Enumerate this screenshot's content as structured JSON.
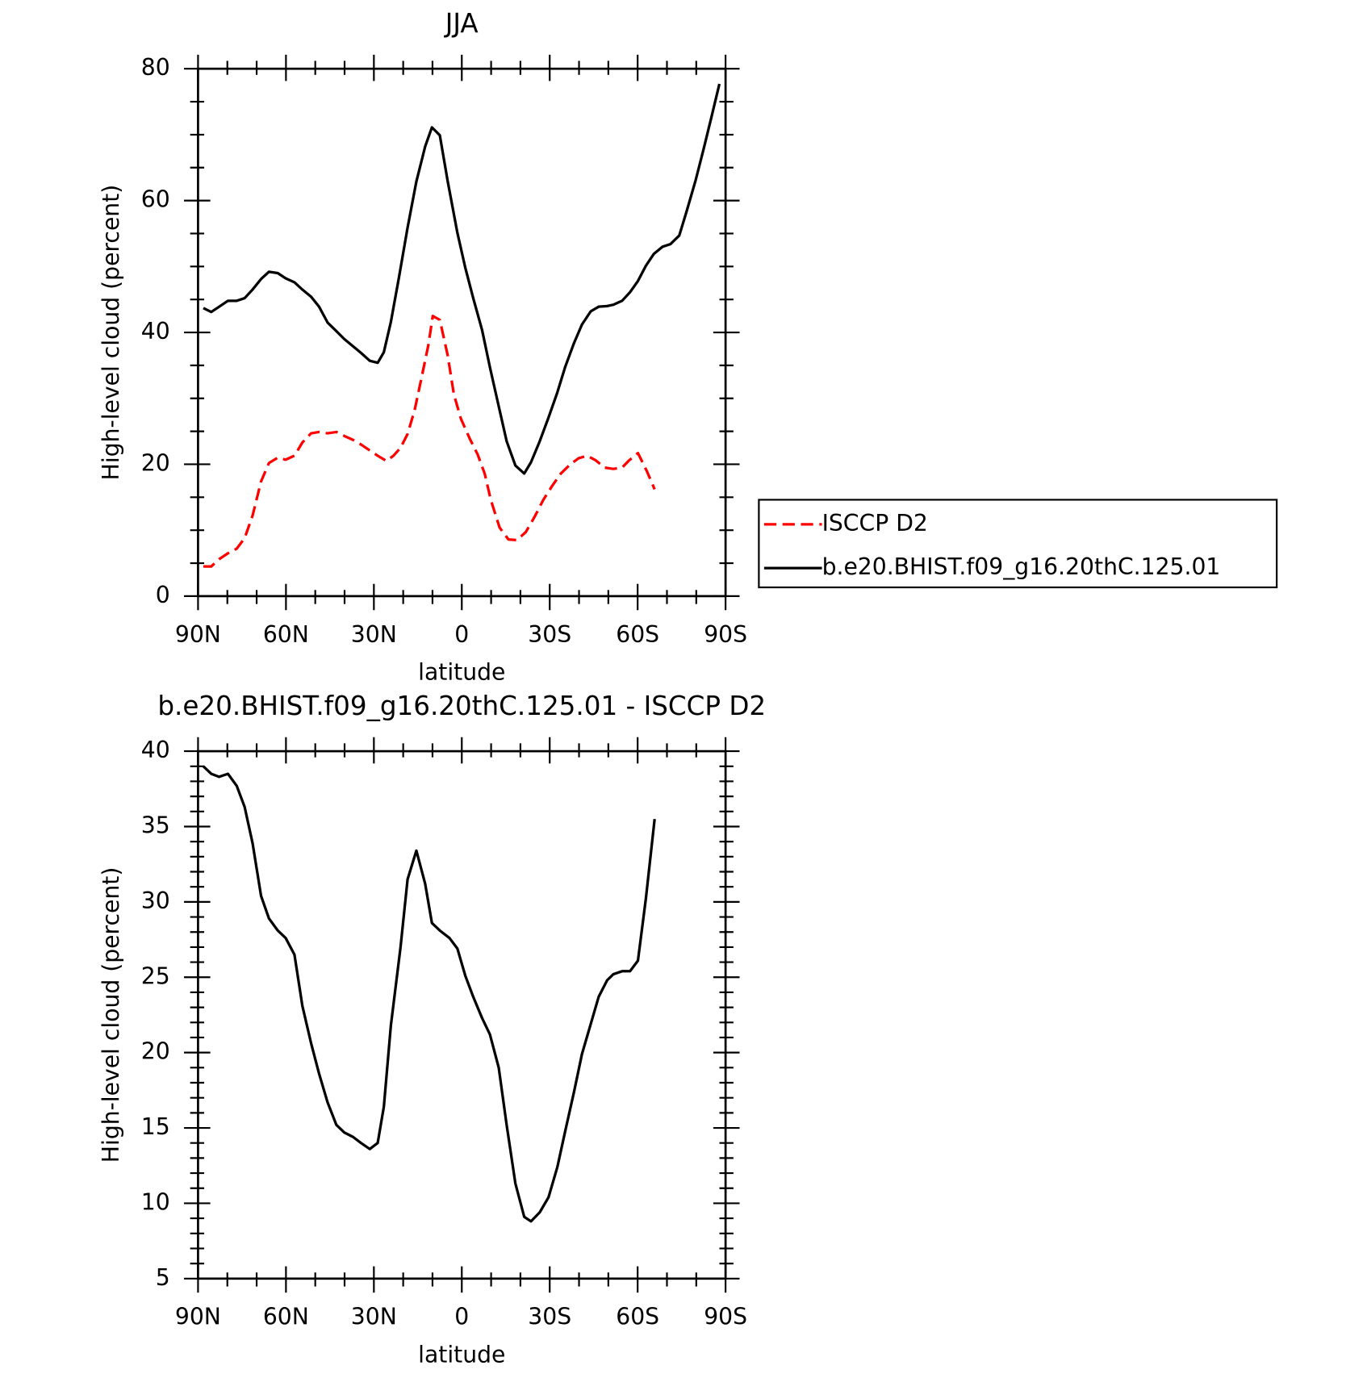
{
  "chart_data": [
    {
      "type": "line",
      "title": "JJA",
      "xlabel": "latitude",
      "ylabel": "High-level cloud (percent)",
      "xlim": [
        90,
        -90
      ],
      "ylim": [
        0,
        80
      ],
      "xticks": [
        {
          "value": 90,
          "label": "90N"
        },
        {
          "value": 60,
          "label": "60N"
        },
        {
          "value": 30,
          "label": "30N"
        },
        0,
        {
          "value": -30,
          "label": "30S"
        },
        {
          "value": -60,
          "label": "60S"
        },
        {
          "value": -90,
          "label": "90S"
        }
      ],
      "yticks": [
        0,
        20,
        40,
        60,
        80
      ],
      "xminorticks": [
        80,
        70,
        50,
        40,
        20,
        10,
        -10,
        -20,
        -40,
        -50,
        -70,
        -80
      ],
      "yminorticks": [
        5,
        10,
        15,
        25,
        30,
        35,
        45,
        50,
        55,
        65,
        70,
        75
      ],
      "legend": "right",
      "series": [
        {
          "name": "ISCCP D2",
          "color": "#ff0000",
          "line_style": "dashed",
          "x": [
            88.2,
            85.5,
            82.8,
            79.8,
            76.8,
            74.1,
            71.4,
            68.5,
            65.8,
            62.8,
            60.1,
            57.1,
            54.4,
            51.4,
            48.7,
            45.8,
            42.8,
            40.1,
            37.1,
            34.4,
            31.4,
            28.7,
            25.7,
            23.3,
            20.9,
            18.5,
            16.1,
            13.8,
            11.4,
            9.9,
            7.5,
            4.8,
            2.7,
            0.3,
            -2.7,
            -5.4,
            -7.8,
            -9.9,
            -12.9,
            -15.9,
            -18.8,
            -21.8,
            -24.8,
            -27.8,
            -30.8,
            -33.8,
            -36.8,
            -39.8,
            -42.8,
            -45.7,
            -48.7,
            -51.7,
            -54.7,
            -57.1,
            -60.1,
            -63.1,
            -65.8
          ],
          "values": [
            4.5,
            4.5,
            5.6,
            6.5,
            7.2,
            8.8,
            12.2,
            17.4,
            20.2,
            21.0,
            20.7,
            21.3,
            23.3,
            24.7,
            24.9,
            24.7,
            24.9,
            24.3,
            23.7,
            23.0,
            22.1,
            21.3,
            20.5,
            21.3,
            22.5,
            24.6,
            28.2,
            33.0,
            38.1,
            42.5,
            41.9,
            36.5,
            30.6,
            26.9,
            23.9,
            21.5,
            18.6,
            14.6,
            10.4,
            8.6,
            8.5,
            9.7,
            12.0,
            14.6,
            16.7,
            18.6,
            19.9,
            20.9,
            21.3,
            20.6,
            19.5,
            19.3,
            19.5,
            20.6,
            21.7,
            19.0,
            16.2
          ]
        },
        {
          "name": "b.e20.BHIST.f09_g16.20thC.125.01",
          "color": "#000000",
          "line_style": "solid",
          "x": [
            88.2,
            85.5,
            82.8,
            79.8,
            76.8,
            74.1,
            71.4,
            68.5,
            65.8,
            62.8,
            60.1,
            57.1,
            54.4,
            51.4,
            48.7,
            45.8,
            42.8,
            40.1,
            37.1,
            34.4,
            31.4,
            28.7,
            26.6,
            24.2,
            21.5,
            18.5,
            15.5,
            12.5,
            10.2,
            7.5,
            4.8,
            1.5,
            -1.2,
            -3.9,
            -6.9,
            -9.6,
            -12.6,
            -15.3,
            -18.3,
            -21.3,
            -23.6,
            -26.6,
            -29.6,
            -32.6,
            -35.3,
            -38.3,
            -41.0,
            -44.0,
            -46.7,
            -49.6,
            -51.7,
            -54.7,
            -57.4,
            -60.1,
            -62.8,
            -65.5,
            -68.5,
            -71.2,
            -74.2,
            -76.8,
            -79.8,
            -82.5,
            -85.2,
            -87.9
          ],
          "values": [
            43.7,
            43.1,
            43.9,
            44.8,
            44.8,
            45.2,
            46.5,
            48.1,
            49.2,
            49.0,
            48.2,
            47.6,
            46.5,
            45.4,
            43.9,
            41.5,
            40.2,
            39.0,
            37.9,
            36.9,
            35.7,
            35.4,
            37.0,
            41.6,
            48.2,
            55.9,
            62.9,
            68.2,
            71.1,
            69.9,
            62.9,
            55.1,
            49.8,
            45.2,
            40.4,
            34.7,
            28.8,
            23.5,
            19.8,
            18.6,
            20.3,
            23.5,
            27.1,
            30.9,
            34.8,
            38.4,
            41.2,
            43.2,
            43.9,
            44.0,
            44.2,
            44.8,
            46.1,
            47.8,
            50.1,
            51.9,
            53.0,
            53.4,
            54.7,
            58.5,
            63.1,
            67.8,
            72.7,
            77.7
          ]
        }
      ]
    },
    {
      "type": "line",
      "title": "b.e20.BHIST.f09_g16.20thC.125.01 - ISCCP D2",
      "xlabel": "latitude",
      "ylabel": "High-level cloud (percent)",
      "xlim": [
        90,
        -90
      ],
      "ylim": [
        5,
        40
      ],
      "xticks": [
        {
          "value": 90,
          "label": "90N"
        },
        {
          "value": 60,
          "label": "60N"
        },
        {
          "value": 30,
          "label": "30N"
        },
        0,
        {
          "value": -30,
          "label": "30S"
        },
        {
          "value": -60,
          "label": "60S"
        },
        {
          "value": -90,
          "label": "90S"
        }
      ],
      "yticks": [
        5,
        10,
        15,
        20,
        25,
        30,
        35,
        40
      ],
      "xminorticks": [
        80,
        70,
        50,
        40,
        20,
        10,
        -10,
        -20,
        -40,
        -50,
        -70,
        -80
      ],
      "yminorticks": [
        6,
        7,
        8,
        9,
        11,
        12,
        13,
        14,
        16,
        17,
        18,
        19,
        21,
        22,
        23,
        24,
        26,
        27,
        28,
        29,
        31,
        32,
        33,
        34,
        36,
        37,
        38,
        39
      ],
      "series": [
        {
          "color": "#000000",
          "line_style": "solid",
          "x": [
            88.2,
            85.5,
            82.8,
            79.8,
            76.8,
            74.1,
            71.4,
            68.5,
            65.8,
            62.8,
            60.1,
            57.1,
            54.4,
            51.4,
            48.7,
            45.8,
            42.8,
            40.1,
            37.1,
            34.4,
            31.4,
            28.7,
            26.6,
            24.2,
            20.9,
            18.5,
            15.5,
            12.5,
            10.2,
            7.5,
            4.2,
            1.5,
            -1.2,
            -3.9,
            -6.9,
            -9.6,
            -12.6,
            -15.3,
            -18.3,
            -21.3,
            -23.6,
            -26.6,
            -29.6,
            -32.6,
            -35.3,
            -38.3,
            -41.0,
            -44.0,
            -46.7,
            -49.6,
            -51.7,
            -54.7,
            -57.4,
            -60.1,
            -62.8,
            -65.8
          ],
          "values": [
            39.0,
            38.5,
            38.3,
            38.5,
            37.7,
            36.3,
            33.9,
            30.4,
            28.9,
            28.1,
            27.6,
            26.5,
            23.1,
            20.6,
            18.6,
            16.7,
            15.2,
            14.7,
            14.4,
            14.0,
            13.6,
            14.0,
            16.4,
            21.8,
            27.0,
            31.5,
            33.4,
            31.2,
            28.6,
            28.1,
            27.6,
            26.9,
            25.1,
            23.7,
            22.3,
            21.2,
            19.0,
            15.2,
            11.3,
            9.1,
            8.8,
            9.4,
            10.4,
            12.4,
            14.8,
            17.4,
            19.9,
            21.9,
            23.7,
            24.8,
            25.2,
            25.4,
            25.4,
            26.1,
            30.2,
            35.5
          ]
        }
      ]
    }
  ]
}
